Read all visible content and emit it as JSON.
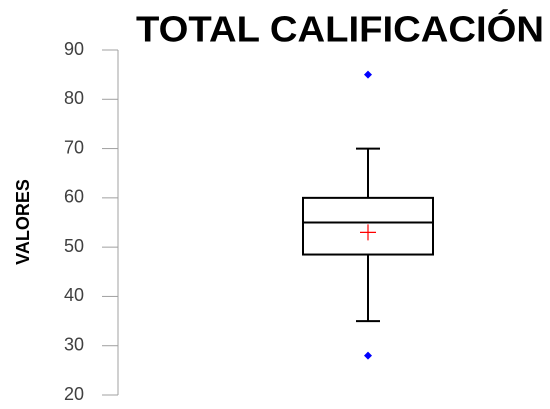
{
  "chart_data": {
    "type": "box",
    "title": "TOTAL CALIFICACIÓN",
    "y_label": "VALORES",
    "ylim": [
      20,
      90
    ],
    "yticks": [
      20,
      30,
      40,
      50,
      60,
      70,
      80,
      90
    ],
    "boxes": [
      {
        "whisker_low": 35,
        "q1": 48.5,
        "median": 55,
        "q3": 60,
        "whisker_high": 70,
        "mean": 53,
        "outliers": [
          85,
          28
        ]
      }
    ],
    "color": "#000000",
    "mean_color": "#ff0000",
    "outlier_color": "#0000ff"
  }
}
